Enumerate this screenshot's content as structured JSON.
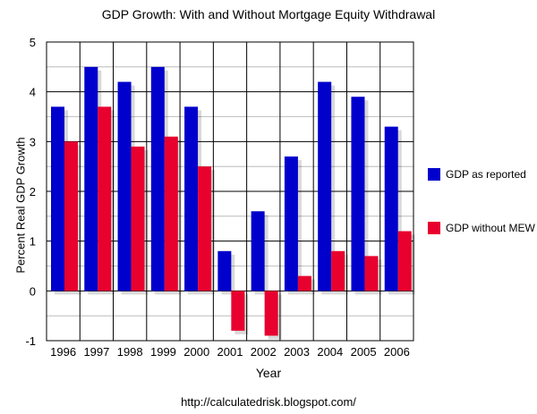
{
  "chart_data": {
    "type": "bar",
    "title": "GDP Growth: With and Without Mortgage Equity Withdrawal",
    "xlabel": "Year",
    "ylabel": "Percent Real GDP Growth",
    "categories": [
      "1996",
      "1997",
      "1998",
      "1999",
      "2000",
      "2001",
      "2002",
      "2003",
      "2004",
      "2005",
      "2006"
    ],
    "series": [
      {
        "name": "GDP as reported",
        "color": "#0000cc",
        "values": [
          3.7,
          4.5,
          4.2,
          4.5,
          3.7,
          0.8,
          1.6,
          2.7,
          4.2,
          3.9,
          3.3
        ]
      },
      {
        "name": "GDP without MEW",
        "color": "#e8002e",
        "values": [
          3.0,
          3.7,
          2.9,
          3.1,
          2.5,
          -0.8,
          -0.9,
          0.3,
          0.8,
          0.7,
          1.2
        ]
      }
    ],
    "yticks": [
      -1,
      0,
      1,
      2,
      3,
      4,
      5
    ],
    "ylim": [
      -1,
      5
    ],
    "grid": true,
    "legend_position": "right"
  },
  "legend": {
    "series0_label": "GDP as reported",
    "series1_label": "GDP without MEW"
  },
  "footer": "http://calculatedrisk.blogspot.com/"
}
